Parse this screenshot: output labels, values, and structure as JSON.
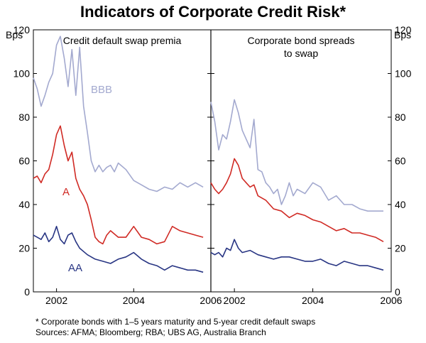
{
  "title": "Indicators of Corporate Credit Risk*",
  "footnote": "*  Corporate bonds with 1–5 years maturity and 5-year credit default swaps",
  "sources": "Sources: AFMA; Bloomberg; RBA; UBS AG, Australia Branch",
  "colors": {
    "bbb": "#a3a9cf",
    "a": "#d02a24",
    "aa": "#283583"
  },
  "chart_data": [
    {
      "type": "line",
      "title": "Credit default swap premia",
      "ylabel_left": "Bps",
      "ylabel_right": "Bps",
      "ylim": [
        0,
        120
      ],
      "yticks": [
        0,
        20,
        40,
        60,
        80,
        100,
        120
      ],
      "xlim": [
        2001.4,
        2006.0
      ],
      "xticks": [
        2002,
        2004,
        2006
      ],
      "xtick_labels": [
        "2002",
        "2004",
        "2006"
      ],
      "series": [
        {
          "name": "BBB",
          "label": "BBB",
          "color": "#a3a9cf",
          "x": [
            2001.4,
            2001.5,
            2001.6,
            2001.7,
            2001.8,
            2001.9,
            2002.0,
            2002.1,
            2002.2,
            2002.3,
            2002.4,
            2002.5,
            2002.6,
            2002.7,
            2002.8,
            2002.9,
            2003.0,
            2003.1,
            2003.2,
            2003.3,
            2003.4,
            2003.5,
            2003.6,
            2003.8,
            2004.0,
            2004.2,
            2004.4,
            2004.6,
            2004.8,
            2005.0,
            2005.2,
            2005.4,
            2005.6,
            2005.8
          ],
          "values": [
            98,
            93,
            85,
            90,
            96,
            100,
            113,
            117,
            107,
            94,
            111,
            90,
            112,
            85,
            73,
            60,
            55,
            58,
            55,
            57,
            58,
            55,
            59,
            56,
            51,
            49,
            47,
            46,
            48,
            47,
            50,
            48,
            50,
            48
          ]
        },
        {
          "name": "A",
          "label": "A",
          "color": "#d02a24",
          "x": [
            2001.4,
            2001.5,
            2001.6,
            2001.7,
            2001.8,
            2001.9,
            2002.0,
            2002.1,
            2002.2,
            2002.3,
            2002.4,
            2002.5,
            2002.6,
            2002.7,
            2002.8,
            2002.9,
            2003.0,
            2003.1,
            2003.2,
            2003.3,
            2003.4,
            2003.6,
            2003.8,
            2004.0,
            2004.2,
            2004.4,
            2004.6,
            2004.8,
            2005.0,
            2005.2,
            2005.4,
            2005.6,
            2005.8
          ],
          "values": [
            52,
            53,
            50,
            54,
            56,
            63,
            72,
            76,
            67,
            60,
            64,
            52,
            47,
            44,
            40,
            33,
            25,
            23,
            22,
            26,
            28,
            25,
            25,
            30,
            25,
            24,
            22,
            23,
            30,
            28,
            27,
            26,
            25
          ]
        },
        {
          "name": "AA",
          "label": "AA",
          "color": "#283583",
          "x": [
            2001.4,
            2001.5,
            2001.6,
            2001.7,
            2001.8,
            2001.9,
            2002.0,
            2002.1,
            2002.2,
            2002.3,
            2002.4,
            2002.5,
            2002.6,
            2002.8,
            2003.0,
            2003.2,
            2003.4,
            2003.6,
            2003.8,
            2004.0,
            2004.2,
            2004.4,
            2004.6,
            2004.8,
            2005.0,
            2005.2,
            2005.4,
            2005.6,
            2005.8
          ],
          "values": [
            26,
            25,
            24,
            27,
            23,
            25,
            30,
            24,
            22,
            26,
            27,
            23,
            20,
            17,
            15,
            14,
            13,
            15,
            16,
            18,
            15,
            13,
            12,
            10,
            12,
            11,
            10,
            10,
            9
          ]
        }
      ]
    },
    {
      "type": "line",
      "title": "Corporate bond spreads to swap",
      "title_lines": [
        "Corporate bond spreads",
        "to swap"
      ],
      "ylabel_left": "Bps",
      "ylabel_right": "Bps",
      "ylim": [
        0,
        120
      ],
      "yticks": [
        0,
        20,
        40,
        60,
        80,
        100,
        120
      ],
      "xlim": [
        2001.4,
        2006.0
      ],
      "xticks": [
        2002,
        2004,
        2006
      ],
      "xtick_labels": [
        "2002",
        "2004",
        "2006"
      ],
      "series": [
        {
          "name": "BBB",
          "color": "#a3a9cf",
          "x": [
            2001.4,
            2001.5,
            2001.6,
            2001.7,
            2001.8,
            2001.9,
            2002.0,
            2002.1,
            2002.2,
            2002.3,
            2002.4,
            2002.5,
            2002.6,
            2002.7,
            2002.8,
            2002.9,
            2003.0,
            2003.1,
            2003.2,
            2003.3,
            2003.4,
            2003.5,
            2003.6,
            2003.8,
            2004.0,
            2004.2,
            2004.4,
            2004.6,
            2004.8,
            2005.0,
            2005.2,
            2005.4,
            2005.6,
            2005.8
          ],
          "values": [
            87,
            78,
            65,
            72,
            70,
            78,
            88,
            82,
            74,
            70,
            66,
            79,
            56,
            55,
            50,
            48,
            45,
            47,
            40,
            44,
            50,
            44,
            47,
            45,
            50,
            48,
            42,
            44,
            40,
            40,
            38,
            37,
            37,
            37
          ]
        },
        {
          "name": "A",
          "color": "#d02a24",
          "x": [
            2001.4,
            2001.5,
            2001.6,
            2001.7,
            2001.8,
            2001.9,
            2002.0,
            2002.1,
            2002.2,
            2002.3,
            2002.4,
            2002.5,
            2002.6,
            2002.8,
            2003.0,
            2003.2,
            2003.4,
            2003.6,
            2003.8,
            2004.0,
            2004.2,
            2004.4,
            2004.6,
            2004.8,
            2005.0,
            2005.2,
            2005.4,
            2005.6,
            2005.8
          ],
          "values": [
            50,
            47,
            45,
            47,
            50,
            54,
            61,
            58,
            52,
            50,
            48,
            49,
            44,
            42,
            38,
            37,
            34,
            36,
            35,
            33,
            32,
            30,
            28,
            29,
            27,
            27,
            26,
            25,
            23
          ]
        },
        {
          "name": "AA",
          "color": "#283583",
          "x": [
            2001.4,
            2001.5,
            2001.6,
            2001.7,
            2001.8,
            2001.9,
            2002.0,
            2002.1,
            2002.2,
            2002.4,
            2002.6,
            2002.8,
            2003.0,
            2003.2,
            2003.4,
            2003.6,
            2003.8,
            2004.0,
            2004.2,
            2004.4,
            2004.6,
            2004.8,
            2005.0,
            2005.2,
            2005.4,
            2005.6,
            2005.8
          ],
          "values": [
            18,
            17,
            18,
            16,
            20,
            19,
            24,
            20,
            18,
            19,
            17,
            16,
            15,
            16,
            16,
            15,
            14,
            14,
            15,
            13,
            12,
            14,
            13,
            12,
            12,
            11,
            10
          ]
        }
      ]
    }
  ]
}
